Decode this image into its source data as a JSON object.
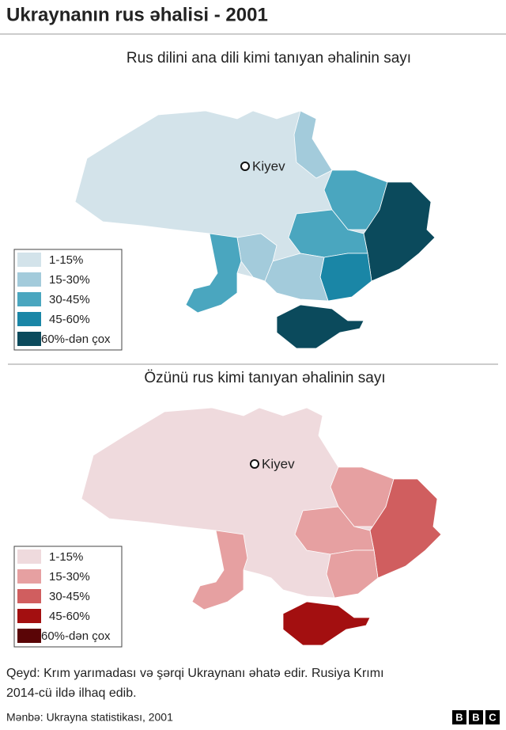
{
  "header": {
    "title": "Ukraynanın rus əhalisi - 2001"
  },
  "maps": [
    {
      "subtitle": "Rus dilini ana dili kimi tanıyan əhalinin sayı",
      "city": "Kiyev",
      "legend": [
        {
          "label": "1-15%",
          "color": "#d3e3ea"
        },
        {
          "label": "15-30%",
          "color": "#a3cbdb"
        },
        {
          "label": "30-45%",
          "color": "#4aa6bf"
        },
        {
          "label": "45-60%",
          "color": "#1a86a6"
        },
        {
          "label": "60%-dən çox",
          "color": "#0b4a5c"
        }
      ]
    },
    {
      "subtitle": "Özünü rus kimi tanıyan əhalinin sayı",
      "city": "Kiyev",
      "legend": [
        {
          "label": "1-15%",
          "color": "#efdadd"
        },
        {
          "label": "15-30%",
          "color": "#e6a0a1"
        },
        {
          "label": "30-45%",
          "color": "#d05e5f"
        },
        {
          "label": "45-60%",
          "color": "#a30f10"
        },
        {
          "label": "60%-dən çox",
          "color": "#5a0506"
        }
      ]
    }
  ],
  "note": [
    "Qeyd: Krım yarımadası və şərqi Ukraynanı əhatə edir. Rusiya Krımı",
    "2014-cü ildə ilhaq edib."
  ],
  "source": "Mənbə: Ukrayna statistikası, 2001",
  "logo": [
    "B",
    "B",
    "C"
  ]
}
